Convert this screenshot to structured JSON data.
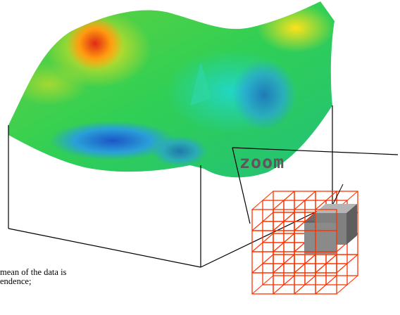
{
  "zoom_label": "zoom",
  "caption": {
    "line1": "mean of the data is",
    "line2": "endence;"
  },
  "colors": {
    "outline": "#000000",
    "grid": "#ff3300",
    "block_front": "#7f7f7f",
    "block_top": "#b0b0b0",
    "block_side": "#5f5f5f",
    "terrain_high": "#e8341a",
    "terrain_mid": "#3fd03a",
    "terrain_low": "#1e6fd0"
  }
}
